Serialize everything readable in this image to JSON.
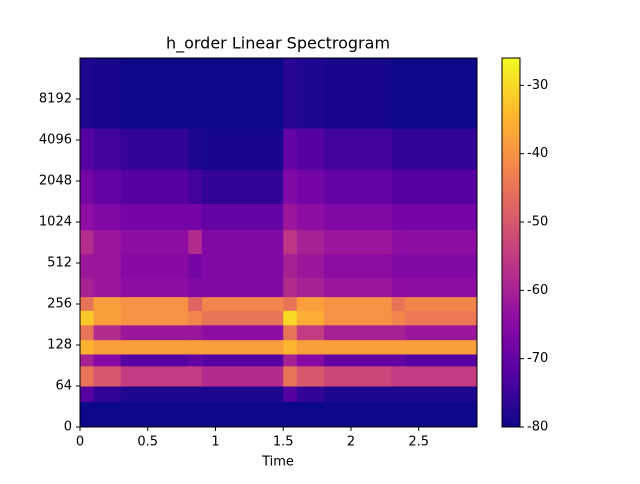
{
  "chart_data": {
    "type": "spectrogram",
    "title": "h_order Linear Spectrogram",
    "x_label": "Time",
    "x_edges": [
      0,
      0.1,
      0.3,
      0.8,
      0.9,
      1.5,
      1.6,
      1.8,
      2.3,
      2.4,
      2.93
    ],
    "y_edges": [
      0,
      40,
      64,
      90,
      110,
      140,
      180,
      230,
      290,
      400,
      600,
      900,
      1400,
      2500,
      5000,
      16384
    ],
    "values": [
      [
        -80,
        -80,
        -80,
        -80,
        -80,
        -80,
        -80,
        -80,
        -80,
        -80
      ],
      [
        -72,
        -76,
        -78,
        -78,
        -78,
        -72,
        -76,
        -78,
        -78,
        -78
      ],
      [
        -45,
        -50,
        -55,
        -55,
        -58,
        -45,
        -50,
        -53,
        -55,
        -55
      ],
      [
        -60,
        -65,
        -72,
        -70,
        -72,
        -60,
        -65,
        -70,
        -70,
        -72
      ],
      [
        -35,
        -38,
        -38,
        -38,
        -38,
        -35,
        -38,
        -38,
        -38,
        -38
      ],
      [
        -45,
        -58,
        -62,
        -62,
        -64,
        -45,
        -55,
        -60,
        -60,
        -62
      ],
      [
        -32,
        -38,
        -40,
        -42,
        -45,
        -30,
        -36,
        -40,
        -42,
        -44
      ],
      [
        -45,
        -38,
        -40,
        -48,
        -42,
        -45,
        -38,
        -40,
        -45,
        -42
      ],
      [
        -60,
        -62,
        -64,
        -66,
        -66,
        -58,
        -60,
        -62,
        -64,
        -64
      ],
      [
        -62,
        -62,
        -65,
        -68,
        -66,
        -60,
        -62,
        -64,
        -66,
        -66
      ],
      [
        -58,
        -62,
        -64,
        -58,
        -66,
        -56,
        -60,
        -62,
        -64,
        -64
      ],
      [
        -64,
        -66,
        -68,
        -68,
        -70,
        -62,
        -64,
        -66,
        -68,
        -68
      ],
      [
        -68,
        -70,
        -72,
        -74,
        -76,
        -66,
        -68,
        -70,
        -72,
        -72
      ],
      [
        -72,
        -74,
        -76,
        -78,
        -79,
        -70,
        -72,
        -74,
        -76,
        -76
      ],
      [
        -78,
        -79,
        -80,
        -80,
        -80,
        -77,
        -78,
        -79,
        -80,
        -80
      ]
    ],
    "xlim": [
      0,
      2.93
    ],
    "xticks": [
      0,
      0.5,
      1,
      1.5,
      2,
      2.5
    ],
    "ylim": [
      0,
      16384
    ],
    "yscale": "symlog",
    "yticks": [
      0,
      64,
      128,
      256,
      512,
      1024,
      2048,
      4096,
      8192
    ],
    "colormap": "plasma",
    "clim": [
      -80,
      -26
    ],
    "cticks": [
      -80,
      -70,
      -60,
      -50,
      -40,
      -30
    ]
  }
}
